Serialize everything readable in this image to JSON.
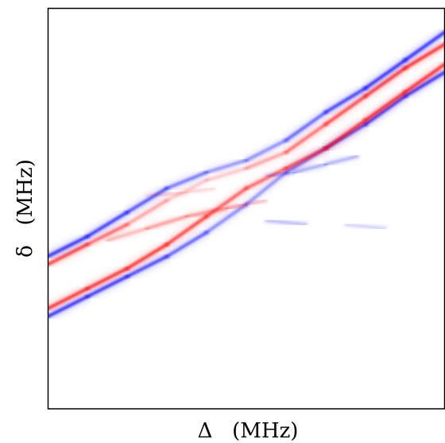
{
  "chart_data": {
    "type": "heatmap",
    "title": "",
    "xlabel": "Δ   (MHz)",
    "ylabel": "δ   (MHz)",
    "xlim": [
      0,
      1
    ],
    "ylim": [
      0,
      1
    ],
    "grid": false,
    "ticks": "none",
    "colormap": {
      "positive": "#ff0000",
      "negative": "#0000ff",
      "zero": "#ffffff"
    },
    "description": "Signed signal in a white background: red (positive) and blue (negative) narrow traces running diagonally, showing an avoided crossing near the center.",
    "series": [
      {
        "sign": "negative",
        "x": [
          0.0,
          0.1,
          0.2,
          0.3,
          0.4,
          0.5,
          0.6,
          0.7,
          0.8,
          0.9,
          1.0
        ],
        "y": [
          0.23,
          0.28,
          0.33,
          0.38,
          0.44,
          0.51,
          0.59,
          0.65,
          0.71,
          0.78,
          0.84
        ],
        "intensity": [
          1.0,
          1.0,
          0.95,
          0.85,
          0.65,
          0.45,
          0.55,
          0.8,
          0.95,
          1.0,
          1.0
        ]
      },
      {
        "sign": "positive",
        "x": [
          0.0,
          0.1,
          0.2,
          0.3,
          0.4,
          0.5,
          0.6,
          0.7,
          0.8,
          0.9,
          1.0
        ],
        "y": [
          0.25,
          0.3,
          0.35,
          0.41,
          0.48,
          0.55,
          0.6,
          0.65,
          0.72,
          0.79,
          0.86
        ],
        "intensity": [
          1.0,
          1.0,
          1.0,
          0.95,
          0.85,
          0.7,
          0.75,
          0.9,
          1.0,
          1.0,
          1.0
        ]
      },
      {
        "sign": "positive",
        "x": [
          0.0,
          0.1,
          0.2,
          0.3,
          0.4,
          0.5,
          0.6,
          0.7,
          0.8,
          0.9,
          1.0
        ],
        "y": [
          0.36,
          0.41,
          0.46,
          0.52,
          0.57,
          0.6,
          0.64,
          0.71,
          0.78,
          0.85,
          0.91
        ],
        "intensity": [
          1.0,
          0.85,
          0.55,
          0.3,
          0.2,
          0.3,
          0.55,
          0.8,
          0.95,
          1.0,
          1.0
        ]
      },
      {
        "sign": "negative",
        "x": [
          0.0,
          0.1,
          0.2,
          0.3,
          0.4,
          0.5,
          0.6,
          0.7,
          0.8,
          0.9,
          1.0
        ],
        "y": [
          0.38,
          0.43,
          0.49,
          0.55,
          0.59,
          0.62,
          0.67,
          0.74,
          0.8,
          0.87,
          0.94
        ],
        "intensity": [
          1.0,
          1.0,
          0.9,
          0.75,
          0.55,
          0.45,
          0.6,
          0.85,
          1.0,
          1.0,
          1.0
        ]
      },
      {
        "sign": "positive",
        "x": [
          0.15,
          0.25,
          0.35,
          0.45,
          0.5,
          0.55
        ],
        "y": [
          0.42,
          0.45,
          0.48,
          0.5,
          0.51,
          0.52
        ],
        "intensity": [
          0.25,
          0.4,
          0.5,
          0.45,
          0.35,
          0.2
        ]
      },
      {
        "sign": "negative",
        "x": [
          0.45,
          0.55,
          0.65,
          0.75,
          0.85
        ],
        "y": [
          0.47,
          0.47,
          0.46,
          0.46,
          0.45
        ],
        "intensity": [
          0.2,
          0.3,
          0.3,
          0.25,
          0.15
        ]
      },
      {
        "sign": "positive",
        "x": [
          0.15,
          0.25,
          0.35,
          0.42
        ],
        "y": [
          0.53,
          0.53,
          0.54,
          0.55
        ],
        "intensity": [
          0.15,
          0.2,
          0.2,
          0.15
        ]
      },
      {
        "sign": "negative",
        "x": [
          0.55,
          0.62,
          0.7,
          0.78
        ],
        "y": [
          0.58,
          0.59,
          0.61,
          0.63
        ],
        "intensity": [
          0.2,
          0.35,
          0.4,
          0.3
        ]
      }
    ]
  }
}
